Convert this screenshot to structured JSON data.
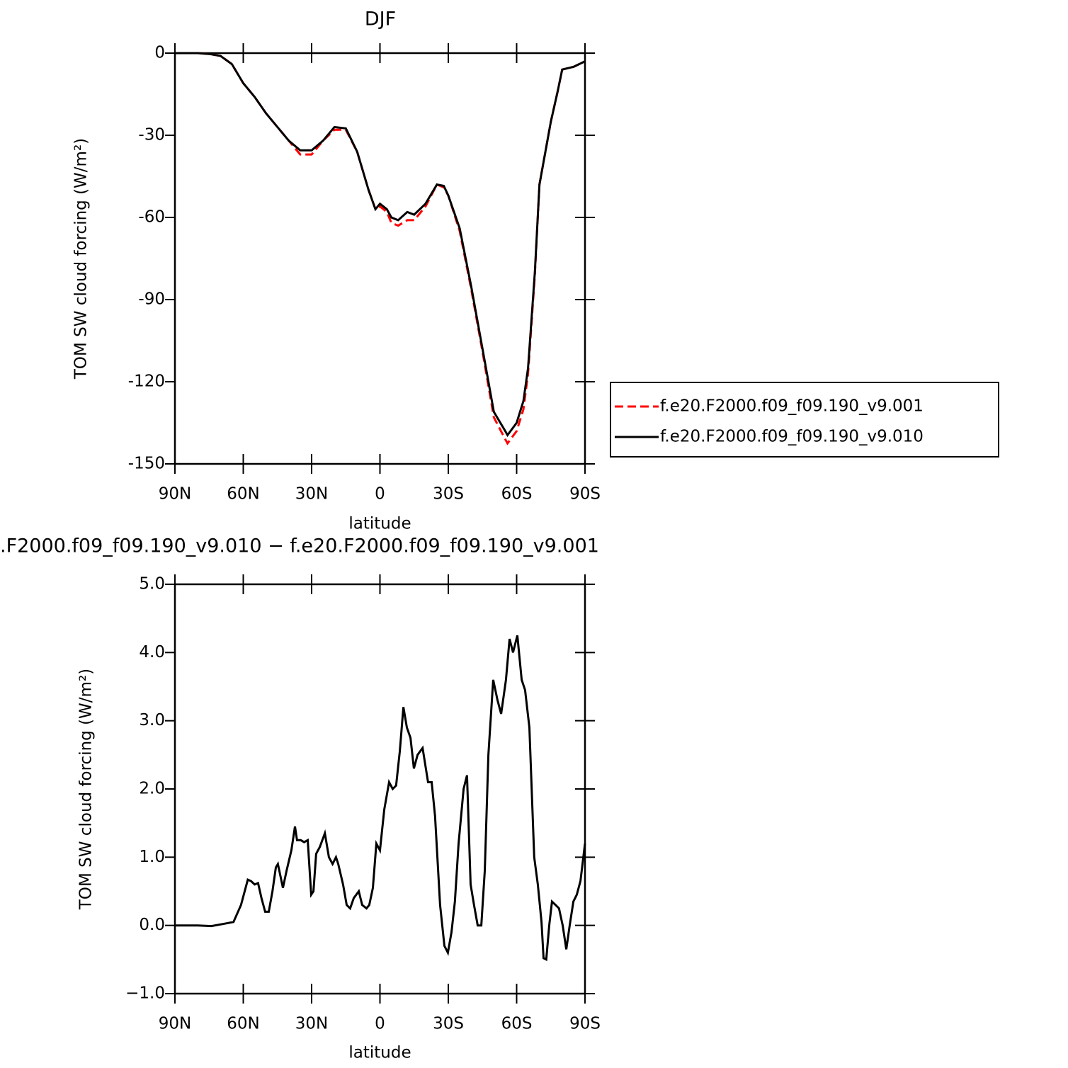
{
  "chart_data": [
    {
      "type": "line",
      "title": "DJF",
      "xlabel": "latitude",
      "ylabel": "TOM SW cloud forcing (W/m²)",
      "xlim": [
        90,
        -90
      ],
      "ylim": [
        -150,
        0
      ],
      "xticks": [
        {
          "value": 90,
          "label": "90N"
        },
        {
          "value": 60,
          "label": "60N"
        },
        {
          "value": 30,
          "label": "30N"
        },
        0,
        {
          "value": -30,
          "label": "30S"
        },
        {
          "value": -60,
          "label": "60S"
        },
        {
          "value": -90,
          "label": "90S"
        }
      ],
      "yticks": [
        0,
        -30,
        -60,
        -90,
        -120,
        -150
      ],
      "legend": "right",
      "x": [
        90,
        85,
        80,
        75,
        70,
        65,
        60,
        55,
        50,
        45,
        40,
        35,
        30,
        25,
        20,
        15,
        10,
        5,
        2,
        0,
        -3,
        -5,
        -8,
        -12,
        -15,
        -20,
        -25,
        -28,
        -30,
        -35,
        -40,
        -45,
        -50,
        -55,
        -56,
        -60,
        -63,
        -65,
        -68,
        -70,
        -75,
        -78,
        -80,
        -85,
        -90
      ],
      "series": [
        {
          "name": "f.e20.F2000.f09_f09.190_v9.001",
          "color": "#ff0000",
          "linestyle": "dashed",
          "values": [
            0,
            0,
            0,
            -0.3,
            -1,
            -4,
            -11,
            -16,
            -22,
            -27,
            -32,
            -37,
            -37,
            -32,
            -28,
            -28,
            -36,
            -50,
            -57,
            -56,
            -58,
            -62,
            -63,
            -61,
            -61,
            -56,
            -48,
            -49,
            -52,
            -65,
            -86,
            -109,
            -133,
            -141,
            -142.5,
            -138,
            -130,
            -117,
            -81,
            -48,
            -25,
            -14,
            -6,
            -5,
            -3
          ]
        },
        {
          "name": "f.e20.F2000.f09_f09.190_v9.010",
          "color": "#000000",
          "linestyle": "solid",
          "values": [
            0,
            0,
            0,
            -0.3,
            -1,
            -4,
            -11,
            -16,
            -22,
            -27,
            -32,
            -35.5,
            -35.5,
            -32,
            -27,
            -27.5,
            -36,
            -50,
            -57,
            -55,
            -57,
            -60,
            -61,
            -58,
            -59,
            -55,
            -48,
            -48.5,
            -52,
            -64,
            -85,
            -108,
            -131,
            -138,
            -139.5,
            -135,
            -127,
            -115,
            -80,
            -48,
            -25,
            -14,
            -6,
            -5,
            -3
          ]
        }
      ]
    },
    {
      "type": "line",
      "title": ".F2000.f09_f09.190_v9.010 − f.e20.F2000.f09_f09.190_v9.001",
      "xlabel": "latitude",
      "ylabel": "TOM SW cloud forcing (W/m²)",
      "xlim": [
        90,
        -90
      ],
      "ylim": [
        -1,
        5
      ],
      "xticks": [
        {
          "value": 90,
          "label": "90N"
        },
        {
          "value": 60,
          "label": "60N"
        },
        {
          "value": 30,
          "label": "30N"
        },
        0,
        {
          "value": -30,
          "label": "30S"
        },
        {
          "value": -60,
          "label": "60S"
        },
        {
          "value": -90,
          "label": "90S"
        }
      ],
      "yticks": [
        {
          "value": 5,
          "label": "5.0"
        },
        {
          "value": 4,
          "label": "4.0"
        },
        {
          "value": 3,
          "label": "3.0"
        },
        {
          "value": 2,
          "label": "2.0"
        },
        {
          "value": 1,
          "label": "1.0"
        },
        {
          "value": 0,
          "label": "0.0"
        },
        {
          "value": -1,
          "label": "−1.0"
        }
      ],
      "x": [
        90,
        80,
        74,
        67.5,
        64.3,
        61,
        58,
        56.6,
        55,
        53.5,
        52,
        50.4,
        48.8,
        47.2,
        45.7,
        44.8,
        42.6,
        41,
        38.9,
        37.3,
        36.4,
        34.8,
        33.3,
        31.7,
        30.2,
        29.2,
        28,
        26.4,
        24.2,
        22.4,
        20.8,
        19.3,
        18.3,
        16.2,
        14.6,
        13.1,
        11.5,
        9.3,
        7.8,
        5.9,
        4.7,
        3.1,
        1.6,
        0,
        -1.9,
        -4,
        -5.6,
        -7.1,
        -8.7,
        -10.3,
        -11.8,
        -13.4,
        -14.9,
        -16.5,
        -18.7,
        -21.1,
        -22.7,
        -24.2,
        -26.4,
        -28.3,
        -29.8,
        -31.4,
        -32.9,
        -34.5,
        -36.7,
        -38.2,
        -39.8,
        -41.3,
        -42.9,
        -44.5,
        -46,
        -47.6,
        -49.7,
        -51.6,
        -53.2,
        -55.3,
        -56.9,
        -58.4,
        -60.3,
        -62.2,
        -63.7,
        -65.6,
        -67.7,
        -69.3,
        -70.9,
        -71.8,
        -73,
        -74.3,
        -75.5,
        -77.1,
        -78.6,
        -80.2,
        -81.8,
        -83.3,
        -84.9,
        -86.4,
        -88,
        -90
      ],
      "series": [
        {
          "color": "#000000",
          "linestyle": "solid",
          "values": [
            0,
            0,
            -0.01,
            0.03,
            0.05,
            0.3,
            0.67,
            0.65,
            0.6,
            0.62,
            0.4,
            0.2,
            0.2,
            0.5,
            0.85,
            0.9,
            0.55,
            0.8,
            1.1,
            1.45,
            1.25,
            1.25,
            1.22,
            1.25,
            0.45,
            0.5,
            1.05,
            1.15,
            1.35,
            1.0,
            0.9,
            1.0,
            0.9,
            0.6,
            0.3,
            0.25,
            0.4,
            0.5,
            0.3,
            0.25,
            0.3,
            0.55,
            1.2,
            1.1,
            1.7,
            2.1,
            2.0,
            2.05,
            2.55,
            3.2,
            2.9,
            2.75,
            2.3,
            2.5,
            2.6,
            2.1,
            2.1,
            1.6,
            0.3,
            -0.3,
            -0.4,
            -0.1,
            0.35,
            1.2,
            2.0,
            2.2,
            0.6,
            0.3,
            0.0,
            0.0,
            0.8,
            2.5,
            3.6,
            3.3,
            3.1,
            3.6,
            4.2,
            4.0,
            4.25,
            3.6,
            3.45,
            2.9,
            1.0,
            0.6,
            0.05,
            -0.48,
            -0.5,
            0.0,
            0.35,
            0.3,
            0.25,
            0.0,
            -0.35,
            0.0,
            0.35,
            0.45,
            0.65,
            1.2
          ]
        }
      ]
    }
  ]
}
